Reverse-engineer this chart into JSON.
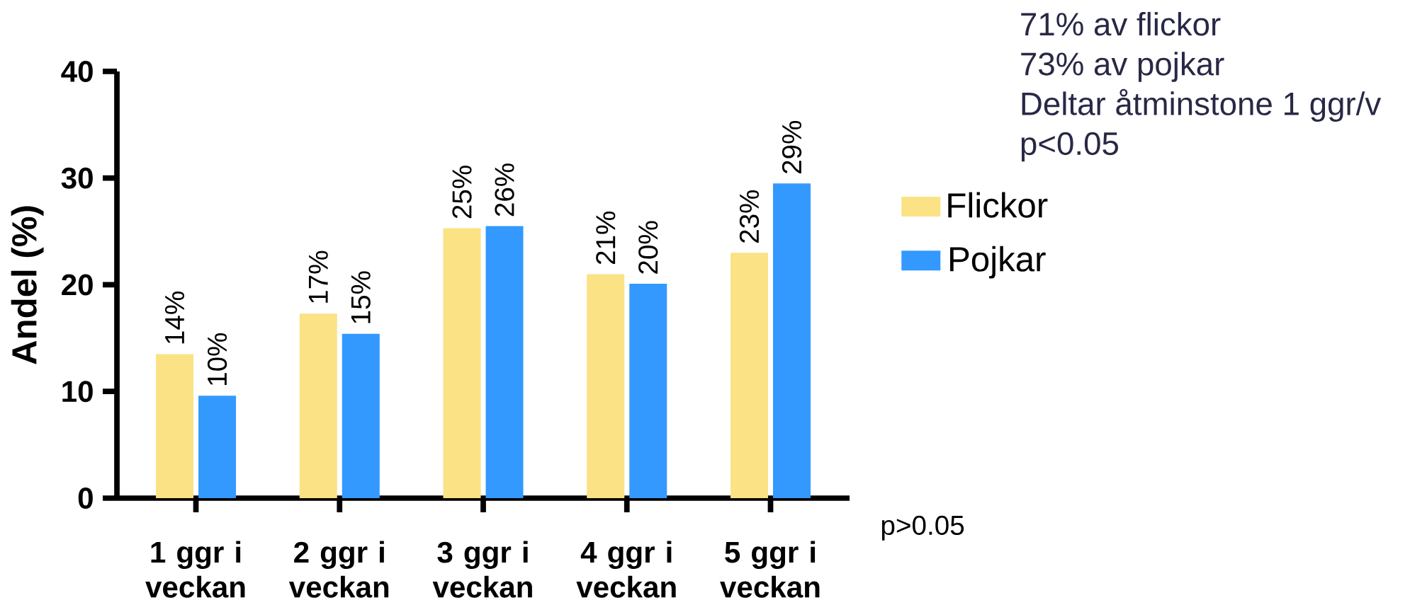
{
  "chart_data": {
    "type": "bar",
    "ylabel": "Andel (%)",
    "categories": [
      "1 ggr i veckan",
      "2 ggr i veckan",
      "3 ggr i veckan",
      "4 ggr i veckan",
      "5 ggr i veckan"
    ],
    "series": [
      {
        "name": "Flickor",
        "color": "#fae285",
        "values": [
          13.5,
          17.3,
          25.3,
          21.0,
          23.0
        ],
        "value_labels": [
          "14%",
          "17%",
          "25%",
          "21%",
          "23%"
        ]
      },
      {
        "name": "Pojkar",
        "color": "#3399ff",
        "values": [
          9.6,
          15.4,
          25.5,
          20.1,
          29.5
        ],
        "value_labels": [
          "10%",
          "15%",
          "26%",
          "20%",
          "29%"
        ]
      }
    ],
    "ylim": [
      0,
      40
    ],
    "yticks": [
      0,
      10,
      20,
      30,
      40
    ],
    "grid": false,
    "legend": "right",
    "annotations": [
      "71% av flickor",
      "73% av pojkar",
      "Deltar åtminstone 1 ggr/v",
      "p<0.05",
      "p>0.05"
    ]
  }
}
